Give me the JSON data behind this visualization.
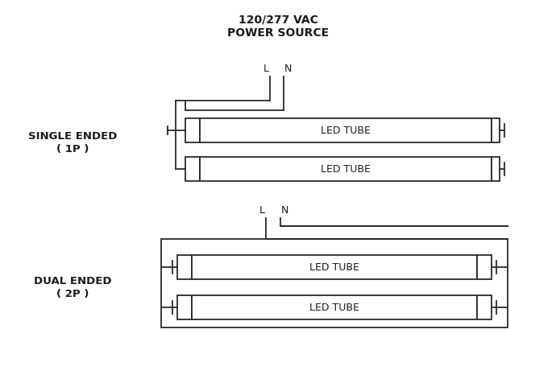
{
  "title_line1": "120/277 VAC",
  "title_line2": "POWER SOURCE",
  "label_single_line1": "SINGLE ENDED",
  "label_single_line2": "( 1P )",
  "label_dual_line1": "DUAL ENDED",
  "label_dual_line2": "( 2P )",
  "led_tube_label": "LED TUBE",
  "bg_color": "#ffffff",
  "line_color": "#2a2a2a",
  "text_color": "#1a1a1a",
  "title_fontsize": 10,
  "label_fontsize": 9.5,
  "tube_label_fontsize": 9
}
